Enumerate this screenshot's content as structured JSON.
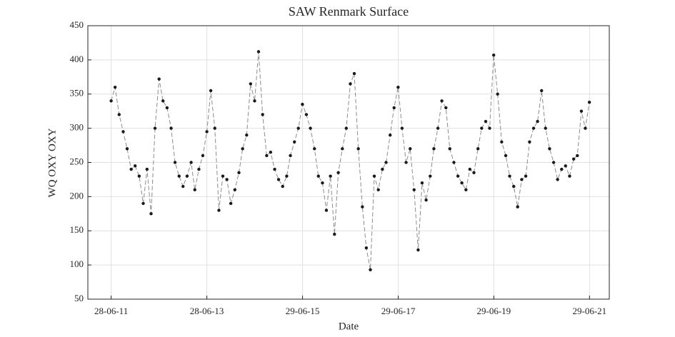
{
  "chart_data": {
    "type": "line",
    "title": "SAW Renmark Surface",
    "xlabel": "Date",
    "ylabel": "WQ OXY OXY",
    "x": [
      "28-06-11",
      "28-07-11",
      "28-08-11",
      "28-09-11",
      "28-10-11",
      "28-11-11",
      "28-12-11",
      "28-01-12",
      "28-02-12",
      "28-03-12",
      "28-04-12",
      "28-05-12",
      "28-06-12",
      "28-07-12",
      "28-08-12",
      "28-09-12",
      "28-10-12",
      "28-11-12",
      "28-12-12",
      "28-01-13",
      "28-02-13",
      "28-03-13",
      "28-04-13",
      "28-05-13",
      "28-06-13",
      "28-07-13",
      "28-08-13",
      "28-09-13",
      "28-10-13",
      "28-11-13",
      "28-12-13",
      "28-01-14",
      "28-02-14",
      "28-03-14",
      "28-04-14",
      "28-05-14",
      "28-06-14",
      "28-07-14",
      "28-08-14",
      "28-09-14",
      "28-10-14",
      "28-11-14",
      "28-12-14",
      "28-01-15",
      "28-02-15",
      "28-03-15",
      "28-04-15",
      "28-05-15",
      "28-06-15",
      "28-07-15",
      "28-08-15",
      "28-09-15",
      "28-10-15",
      "28-11-15",
      "28-12-15",
      "28-01-16",
      "28-02-16",
      "28-03-16",
      "28-04-16",
      "28-05-16",
      "28-06-16",
      "28-07-16",
      "28-08-16",
      "28-09-16",
      "28-10-16",
      "28-11-16",
      "28-12-16",
      "28-01-17",
      "28-02-17",
      "28-03-17",
      "28-04-17",
      "28-05-17",
      "28-06-17",
      "28-07-17",
      "28-08-17",
      "28-09-17",
      "28-10-17",
      "28-11-17",
      "28-12-17",
      "28-01-18",
      "28-02-18",
      "28-03-18",
      "28-04-18",
      "28-05-18",
      "28-06-18",
      "28-07-18",
      "28-08-18",
      "28-09-18",
      "28-10-18",
      "28-11-18",
      "28-12-18",
      "28-01-19",
      "28-02-19",
      "28-03-19",
      "28-04-19",
      "28-05-19",
      "28-06-19",
      "28-07-19",
      "28-08-19",
      "28-09-19",
      "28-10-19",
      "28-11-19",
      "28-12-19",
      "28-01-20",
      "28-02-20",
      "28-03-20",
      "28-04-20",
      "28-05-20",
      "28-06-20",
      "28-07-20",
      "28-08-20",
      "28-09-20",
      "28-10-20",
      "28-11-20",
      "28-12-20",
      "28-01-21",
      "28-02-21",
      "28-03-21",
      "28-04-21",
      "28-05-21",
      "28-06-21"
    ],
    "values": [
      340,
      360,
      320,
      295,
      270,
      240,
      245,
      230,
      190,
      240,
      175,
      300,
      372,
      340,
      330,
      300,
      250,
      230,
      215,
      230,
      250,
      210,
      240,
      260,
      295,
      355,
      300,
      180,
      230,
      225,
      190,
      210,
      235,
      270,
      290,
      365,
      340,
      412,
      320,
      260,
      265,
      240,
      225,
      215,
      230,
      260,
      280,
      300,
      335,
      320,
      300,
      270,
      230,
      220,
      180,
      230,
      145,
      235,
      270,
      300,
      365,
      380,
      270,
      185,
      125,
      93,
      230,
      210,
      240,
      250,
      290,
      330,
      360,
      300,
      250,
      270,
      210,
      122,
      220,
      195,
      230,
      270,
      300,
      340,
      330,
      270,
      250,
      230,
      220,
      210,
      240,
      235,
      270,
      300,
      310,
      300,
      407,
      350,
      280,
      260,
      230,
      215,
      185,
      225,
      230,
      280,
      300,
      310,
      355,
      300,
      270,
      250,
      225,
      240,
      245,
      230,
      255,
      260,
      325,
      300,
      338
    ],
    "color": "#1a1a1a",
    "line_color": "#8c8c8c",
    "xlim": [
      "01-01-11",
      "27-11-21"
    ],
    "xticks": [
      "28-06-11",
      "28-06-13",
      "29-06-15",
      "29-06-17",
      "29-06-19",
      "29-06-21"
    ],
    "ylim": [
      50,
      450
    ],
    "yticks": [
      50,
      100,
      150,
      200,
      250,
      300,
      350,
      400,
      450
    ],
    "grid": true
  }
}
